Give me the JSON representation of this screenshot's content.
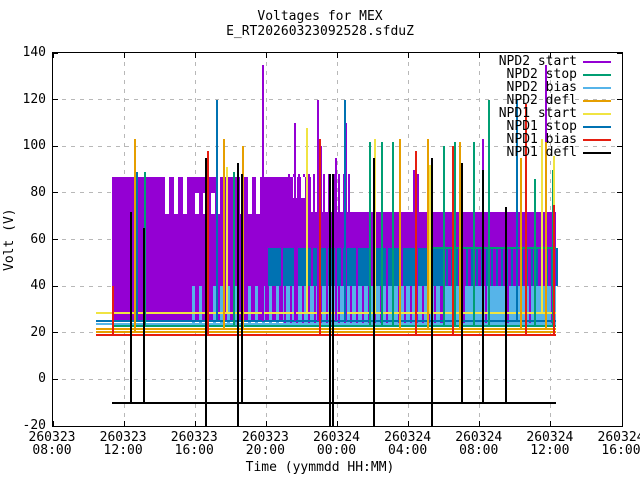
{
  "title": "Voltages for MEX",
  "subtitle": "E_RT20260323092528.sfduZ",
  "axes": {
    "ylabel": "Volt (V)",
    "xlabel": "Time (yymmdd HH:MM)",
    "ymin": -20,
    "ymax": 140,
    "ytick_step": 20,
    "yticks": [
      140,
      120,
      100,
      80,
      60,
      40,
      20,
      0,
      -20
    ],
    "xticks": [
      {
        "date": "260323",
        "time": "08:00"
      },
      {
        "date": "260323",
        "time": "12:00"
      },
      {
        "date": "260323",
        "time": "16:00"
      },
      {
        "date": "260323",
        "time": "20:00"
      },
      {
        "date": "260324",
        "time": "00:00"
      },
      {
        "date": "260324",
        "time": "04:00"
      },
      {
        "date": "260324",
        "time": "08:00"
      },
      {
        "date": "260324",
        "time": "12:00"
      },
      {
        "date": "260324",
        "time": "16:00"
      }
    ],
    "x_hours_total": 32,
    "grid_color": "#b8b8b8",
    "border_color": "#000000"
  },
  "legend": [
    {
      "label": "NPD2 start",
      "key": "2start"
    },
    {
      "label": "NPD2 stop",
      "key": "2stop"
    },
    {
      "label": "NPD2 bias",
      "key": "2bias"
    },
    {
      "label": "NPD2 defl",
      "key": "2defl"
    },
    {
      "label": "NPD1 start",
      "key": "1start"
    },
    {
      "label": "NPD1 stop",
      "key": "1stop"
    },
    {
      "label": "NPD1 bias",
      "key": "1bias"
    },
    {
      "label": "NPD1 defl",
      "key": "1defl"
    }
  ],
  "colors": {
    "2start": "#9400d3",
    "2stop": "#009e73",
    "2bias": "#56b4e9",
    "2defl": "#e69f00",
    "1start": "#f0e442",
    "1stop": "#0072b2",
    "1bias": "#e51e10",
    "1defl": "#000000",
    "white": "#ffffff"
  },
  "chart_data": {
    "type": "line",
    "title": "Voltages for MEX",
    "subtitle": "E_RT20260323092528.sfduZ",
    "xlabel": "Time (yymmdd HH:MM)",
    "ylabel": "Volt (V)",
    "x_range": [
      "260323 08:00",
      "260324 16:00"
    ],
    "ylim": [
      -20,
      140
    ],
    "grid": true,
    "legend_position": "top-right",
    "series_names": [
      "NPD2 start",
      "NPD2 stop",
      "NPD2 bias",
      "NPD2 defl",
      "NPD1 start",
      "NPD1 stop",
      "NPD1 bias",
      "NPD1 defl"
    ],
    "x_unit_hours_since_start": true,
    "data_span_hours": [
      2.4,
      28.3
    ],
    "bands": [
      [
        3.3,
        14.5,
        25,
        87,
        "2start"
      ],
      [
        14.5,
        28.3,
        25,
        72,
        "2start"
      ],
      [
        12.0,
        21.8,
        40,
        56.5,
        "1stop"
      ],
      [
        21.8,
        28.3,
        40,
        56.5,
        "2start"
      ],
      [
        13.0,
        28.3,
        24,
        40,
        "2bias"
      ]
    ],
    "stripe_regions": [
      [
        7.8,
        13.0,
        24,
        40,
        "2bias",
        7,
        3
      ],
      [
        13.0,
        21.8,
        24,
        40,
        "2start",
        6,
        2
      ],
      [
        21.8,
        28.3,
        24,
        40,
        "2start",
        22,
        2
      ],
      [
        21.8,
        28.3,
        40,
        56.5,
        "1stop",
        5,
        2
      ],
      [
        12.0,
        21.8,
        40,
        56.5,
        "2start",
        15,
        2
      ],
      [
        13.2,
        16.6,
        72,
        88,
        "2start",
        5,
        2
      ],
      [
        6.3,
        7.7,
        71,
        87,
        "white",
        9,
        4
      ],
      [
        8.0,
        8.9,
        71,
        80,
        "white",
        8,
        4
      ],
      [
        9.15,
        9.5,
        71,
        87,
        "white",
        9,
        4
      ],
      [
        10.5,
        11.4,
        71,
        87,
        "white",
        8,
        4
      ],
      [
        13.5,
        14.2,
        78,
        87,
        "white",
        8,
        4
      ]
    ],
    "baselines": [
      [
        2.4,
        28.3,
        28.6,
        "1start"
      ],
      [
        2.4,
        28.3,
        24.9,
        "1stop"
      ],
      [
        2.4,
        28.3,
        23.8,
        "2bias"
      ],
      [
        3.3,
        28.3,
        23.0,
        "2stop"
      ],
      [
        2.4,
        28.3,
        21.5,
        "2defl"
      ],
      [
        2.4,
        28.3,
        20.2,
        "2defl"
      ],
      [
        2.4,
        28.3,
        19.0,
        "1bias"
      ],
      [
        3.3,
        28.3,
        -10,
        "1defl"
      ],
      [
        21.3,
        28.3,
        56.5,
        "2stop"
      ]
    ],
    "spikes": [
      [
        11.8,
        25,
        135,
        "2start"
      ],
      [
        13.6,
        25,
        110,
        "2start"
      ],
      [
        14.9,
        25,
        120,
        "2start"
      ],
      [
        15.1,
        72,
        100,
        "2start"
      ],
      [
        15.9,
        25,
        95,
        "2start"
      ],
      [
        16.5,
        25,
        110,
        "2start"
      ],
      [
        20.3,
        72,
        90,
        "2start"
      ],
      [
        20.5,
        72,
        88,
        "2start"
      ],
      [
        24.2,
        25,
        103,
        "2start"
      ],
      [
        27.7,
        25,
        135,
        "2start"
      ],
      [
        5.2,
        23,
        89,
        "2stop"
      ],
      [
        10.2,
        23,
        89,
        "2stop"
      ],
      [
        17.8,
        23,
        102,
        "2stop"
      ],
      [
        18.5,
        23,
        102,
        "2stop"
      ],
      [
        19.1,
        23,
        102,
        "2stop"
      ],
      [
        22.0,
        23,
        100,
        "2stop"
      ],
      [
        22.6,
        23,
        102,
        "2stop"
      ],
      [
        22.9,
        23,
        102,
        "2stop"
      ],
      [
        23.7,
        23,
        102,
        "2stop"
      ],
      [
        24.5,
        23,
        120,
        "2stop"
      ],
      [
        27.1,
        23,
        86,
        "2stop"
      ],
      [
        28.1,
        23,
        90,
        "2stop"
      ],
      [
        4.6,
        20,
        103,
        "2defl"
      ],
      [
        9.6,
        21,
        103,
        "2defl"
      ],
      [
        10.7,
        21,
        100,
        "2defl"
      ],
      [
        19.5,
        21,
        103,
        "2defl"
      ],
      [
        21.1,
        21,
        103,
        "2defl"
      ],
      [
        22.9,
        21,
        102,
        "2defl"
      ],
      [
        26.3,
        21,
        95,
        "2defl"
      ],
      [
        27.7,
        21,
        102,
        "2defl"
      ],
      [
        9.8,
        28,
        91,
        "1start"
      ],
      [
        14.3,
        28,
        108,
        "1start"
      ],
      [
        18.1,
        28,
        103,
        "1start"
      ],
      [
        21.2,
        28,
        92,
        "1start"
      ],
      [
        27.5,
        28,
        103,
        "1start"
      ],
      [
        28.2,
        28,
        96,
        "1start"
      ],
      [
        4.7,
        25,
        89,
        "1stop"
      ],
      [
        9.2,
        25,
        120,
        "1stop"
      ],
      [
        16.4,
        25,
        120,
        "1stop"
      ],
      [
        26.1,
        25,
        120,
        "1stop"
      ],
      [
        3.4,
        19,
        40,
        "1bias"
      ],
      [
        8.7,
        19,
        98,
        "1bias"
      ],
      [
        15.0,
        19,
        103,
        "1bias"
      ],
      [
        20.4,
        19,
        98,
        "1bias"
      ],
      [
        22.5,
        19,
        100,
        "1bias"
      ],
      [
        26.6,
        19,
        118,
        "1bias"
      ],
      [
        28.2,
        19,
        75,
        "1bias"
      ],
      [
        4.4,
        -10,
        72,
        "1defl"
      ],
      [
        5.1,
        -10,
        65,
        "1defl"
      ],
      [
        8.6,
        -20,
        95,
        "1defl"
      ],
      [
        10.4,
        -20,
        93,
        "1defl"
      ],
      [
        10.65,
        -10,
        88,
        "1defl"
      ],
      [
        15.6,
        -20,
        88,
        "1defl"
      ],
      [
        15.75,
        -20,
        88,
        "1defl"
      ],
      [
        18.05,
        -20,
        95,
        "1defl"
      ],
      [
        21.3,
        -20,
        95,
        "1defl"
      ],
      [
        23.0,
        -10,
        93,
        "1defl"
      ],
      [
        24.2,
        -10,
        90,
        "1defl"
      ],
      [
        25.5,
        -10,
        74,
        "1defl"
      ]
    ]
  }
}
